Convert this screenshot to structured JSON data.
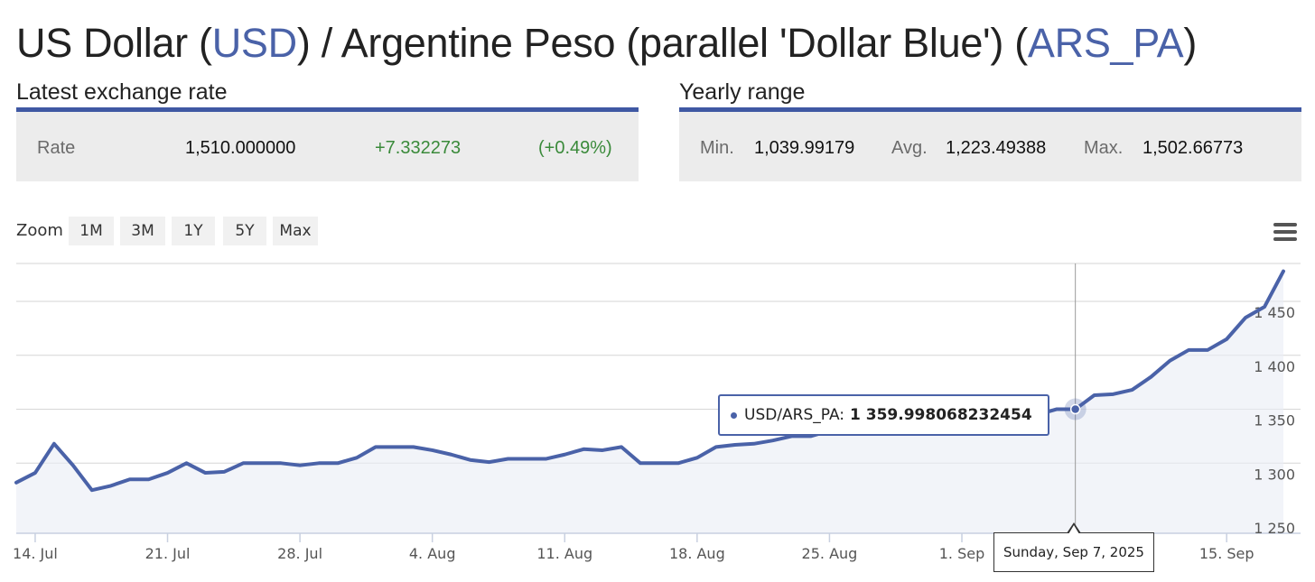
{
  "header": {
    "title_pre": "US Dollar (",
    "title_code1": "USD",
    "title_mid": ") / Argentine Peso (parallel 'Dollar Blue') (",
    "title_code2": "ARS_PA",
    "title_post": ")"
  },
  "latest": {
    "heading": "Latest exchange rate",
    "rate_label": "Rate",
    "rate_value": "1,510.000000",
    "change": "+7.332273",
    "change_pct": "(+0.49%)"
  },
  "yearly": {
    "heading": "Yearly range",
    "min_label": "Min.",
    "min_value": "1,039.99179",
    "avg_label": "Avg.",
    "avg_value": "1,223.49388",
    "max_label": "Max.",
    "max_value": "1,502.66773"
  },
  "zoom": {
    "label": "Zoom",
    "buttons": [
      "1M",
      "3M",
      "1Y",
      "5Y",
      "Max"
    ]
  },
  "colors": {
    "accent": "#3f58a3",
    "line": "#4a62a8",
    "positive": "#3a8a3a"
  },
  "tooltip": {
    "series_label": "USD/ARS_PA:",
    "value": "1 359.998068232454",
    "date": "Sunday, Sep 7, 2025"
  },
  "chart_data": {
    "type": "area",
    "series": [
      {
        "name": "USD/ARS_PA",
        "points": [
          [
            "2025-07-13",
            1292
          ],
          [
            "2025-07-14",
            1301
          ],
          [
            "2025-07-15",
            1328
          ],
          [
            "2025-07-16",
            1308
          ],
          [
            "2025-07-17",
            1285
          ],
          [
            "2025-07-18",
            1289
          ],
          [
            "2025-07-19",
            1295
          ],
          [
            "2025-07-20",
            1295
          ],
          [
            "2025-07-21",
            1301
          ],
          [
            "2025-07-22",
            1310
          ],
          [
            "2025-07-23",
            1301
          ],
          [
            "2025-07-24",
            1302
          ],
          [
            "2025-07-25",
            1310
          ],
          [
            "2025-07-26",
            1310
          ],
          [
            "2025-07-27",
            1310
          ],
          [
            "2025-07-28",
            1308
          ],
          [
            "2025-07-29",
            1310
          ],
          [
            "2025-07-30",
            1310
          ],
          [
            "2025-07-31",
            1315
          ],
          [
            "2025-08-01",
            1325
          ],
          [
            "2025-08-02",
            1325
          ],
          [
            "2025-08-03",
            1325
          ],
          [
            "2025-08-04",
            1322
          ],
          [
            "2025-08-05",
            1318
          ],
          [
            "2025-08-06",
            1313
          ],
          [
            "2025-08-07",
            1311
          ],
          [
            "2025-08-08",
            1314
          ],
          [
            "2025-08-09",
            1314
          ],
          [
            "2025-08-10",
            1314
          ],
          [
            "2025-08-11",
            1318
          ],
          [
            "2025-08-12",
            1323
          ],
          [
            "2025-08-13",
            1322
          ],
          [
            "2025-08-14",
            1325
          ],
          [
            "2025-08-15",
            1310
          ],
          [
            "2025-08-16",
            1310
          ],
          [
            "2025-08-17",
            1310
          ],
          [
            "2025-08-18",
            1315
          ],
          [
            "2025-08-19",
            1325
          ],
          [
            "2025-08-20",
            1327
          ],
          [
            "2025-08-21",
            1328
          ],
          [
            "2025-08-22",
            1331
          ],
          [
            "2025-08-23",
            1335
          ],
          [
            "2025-08-24",
            1335
          ],
          [
            "2025-08-25",
            1340
          ],
          [
            "2025-08-26",
            1348
          ],
          [
            "2025-08-27",
            1355
          ],
          [
            "2025-08-28",
            1348
          ],
          [
            "2025-08-29",
            1340
          ],
          [
            "2025-08-30",
            1340
          ],
          [
            "2025-08-31",
            1340
          ],
          [
            "2025-09-01",
            1343
          ],
          [
            "2025-09-02",
            1350
          ],
          [
            "2025-09-03",
            1352
          ],
          [
            "2025-09-04",
            1345
          ],
          [
            "2025-09-05",
            1355
          ],
          [
            "2025-09-06",
            1360
          ],
          [
            "2025-09-07",
            1360
          ],
          [
            "2025-09-08",
            1373
          ],
          [
            "2025-09-09",
            1374
          ],
          [
            "2025-09-10",
            1378
          ],
          [
            "2025-09-11",
            1390
          ],
          [
            "2025-09-12",
            1405
          ],
          [
            "2025-09-13",
            1415
          ],
          [
            "2025-09-14",
            1415
          ],
          [
            "2025-09-15",
            1425
          ],
          [
            "2025-09-16",
            1445
          ],
          [
            "2025-09-17",
            1455
          ],
          [
            "2025-09-18",
            1488
          ]
        ]
      }
    ],
    "x_tick_labels": [
      "14. Jul",
      "21. Jul",
      "28. Jul",
      "4. Aug",
      "11. Aug",
      "18. Aug",
      "25. Aug",
      "1. Sep",
      "15. Sep"
    ],
    "y_tick_labels": [
      "1 250",
      "1 300",
      "1 350",
      "1 400",
      "1 450"
    ],
    "xlim": [
      "2025-07-13",
      "2025-09-18"
    ],
    "ylim": [
      1240,
      1500
    ],
    "grid": true,
    "highlight": {
      "date": "2025-09-07",
      "value": 1359.998068232454
    }
  }
}
